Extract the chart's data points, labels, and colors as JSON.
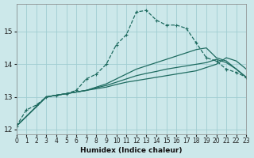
{
  "xlabel": "Humidex (Indice chaleur)",
  "bg_color": "#cce8ea",
  "grid_color": "#a0cdd2",
  "line_color": "#1e6b60",
  "xlim": [
    0,
    23
  ],
  "ylim": [
    11.85,
    15.85
  ],
  "yticks": [
    12,
    13,
    14,
    15
  ],
  "xticks": [
    0,
    1,
    2,
    3,
    4,
    5,
    6,
    7,
    8,
    9,
    10,
    11,
    12,
    13,
    14,
    15,
    16,
    17,
    18,
    19,
    20,
    21,
    22,
    23
  ],
  "curve1": {
    "x": [
      0,
      1,
      2,
      3,
      4,
      5,
      6,
      7,
      8,
      9,
      10,
      11,
      12,
      13,
      14,
      15,
      16,
      17,
      18,
      19,
      20,
      21,
      22,
      23
    ],
    "y": [
      12.1,
      12.6,
      12.75,
      13.0,
      13.05,
      13.1,
      13.2,
      13.55,
      13.7,
      14.0,
      14.6,
      14.9,
      15.6,
      15.65,
      15.35,
      15.2,
      15.2,
      15.1,
      14.65,
      14.2,
      14.1,
      13.85,
      13.75,
      13.6
    ]
  },
  "curve2": {
    "x": [
      0,
      3,
      4,
      5,
      6,
      7,
      8,
      9,
      10,
      11,
      12,
      13,
      14,
      15,
      16,
      17,
      18,
      19,
      20,
      21,
      22,
      23
    ],
    "y": [
      12.1,
      13.0,
      13.05,
      13.1,
      13.15,
      13.2,
      13.3,
      13.4,
      13.55,
      13.7,
      13.85,
      13.95,
      14.05,
      14.15,
      14.25,
      14.35,
      14.45,
      14.5,
      14.2,
      14.1,
      13.85,
      13.6
    ]
  },
  "curve3": {
    "x": [
      0,
      3,
      4,
      5,
      6,
      7,
      8,
      9,
      10,
      11,
      12,
      13,
      14,
      15,
      16,
      17,
      18,
      19,
      20,
      21,
      22,
      23
    ],
    "y": [
      12.1,
      13.0,
      13.05,
      13.1,
      13.15,
      13.2,
      13.28,
      13.35,
      13.45,
      13.55,
      13.65,
      13.72,
      13.78,
      13.85,
      13.9,
      13.95,
      14.0,
      14.05,
      14.15,
      14.05,
      13.85,
      13.6
    ]
  },
  "curve4": {
    "x": [
      0,
      3,
      4,
      5,
      6,
      7,
      8,
      9,
      10,
      11,
      12,
      13,
      14,
      15,
      16,
      17,
      18,
      19,
      20,
      21,
      22,
      23
    ],
    "y": [
      12.1,
      13.0,
      13.05,
      13.1,
      13.15,
      13.2,
      13.25,
      13.3,
      13.38,
      13.45,
      13.5,
      13.55,
      13.6,
      13.65,
      13.7,
      13.75,
      13.8,
      13.9,
      14.0,
      14.2,
      14.1,
      13.85
    ]
  }
}
